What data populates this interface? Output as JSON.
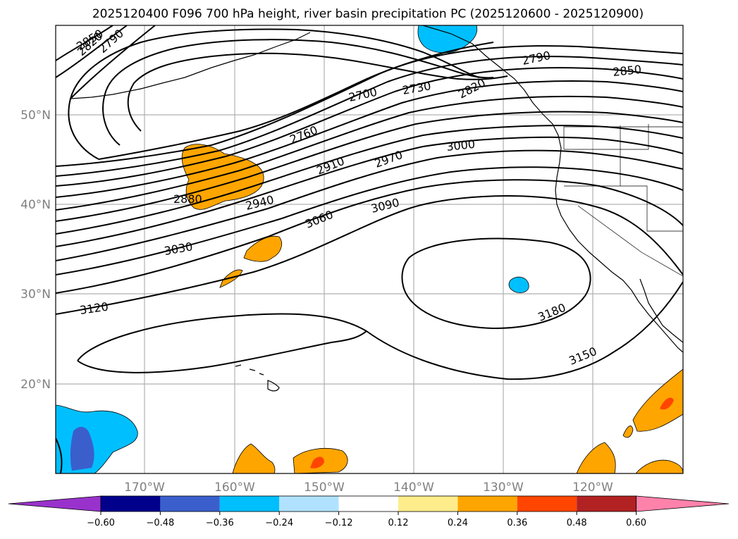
{
  "title": "2025120400 F096 700 hPa height, river basin precipitation PC (2025120600 - 2025120900)",
  "map": {
    "lon_labels": [
      "170°W",
      "160°W",
      "150°W",
      "140°W",
      "130°W",
      "120°W"
    ],
    "lat_labels": [
      "50°N",
      "40°N",
      "30°N",
      "20°N"
    ],
    "contour_labels": [
      "2850",
      "2820",
      "2790",
      "2700",
      "2730",
      "2820",
      "2790",
      "2850",
      "2760",
      "3000",
      "2910",
      "2970",
      "2880",
      "2940",
      "3090",
      "3060",
      "3030",
      "3120",
      "3180",
      "3150"
    ],
    "colors": {
      "orange": "#ffa500",
      "light_blue": "#00bfff",
      "red_orange": "#ff4500",
      "blue": "#3a5fcd"
    }
  },
  "colorbar": {
    "ticks": [
      "−0.60",
      "−0.48",
      "−0.36",
      "−0.24",
      "−0.12",
      "0.12",
      "0.24",
      "0.36",
      "0.48",
      "0.60"
    ],
    "colors": [
      "#9932cc",
      "#00008b",
      "#3a5fcd",
      "#00bfff",
      "#b0e2ff",
      "#ffffff",
      "#ffec8b",
      "#ffa500",
      "#ff4500",
      "#b22222",
      "#ff82ab",
      "#ff82ab"
    ]
  }
}
